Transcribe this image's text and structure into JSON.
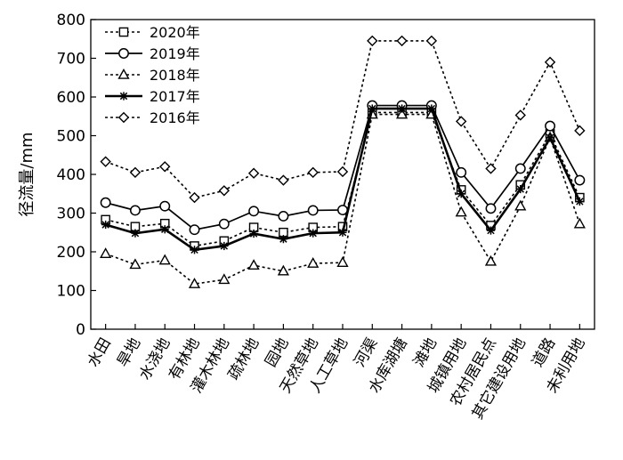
{
  "chart_data": {
    "type": "line",
    "ylabel": "径流量/mm",
    "ylim": [
      0,
      800
    ],
    "yticks": [
      0,
      100,
      200,
      300,
      400,
      500,
      600,
      700,
      800
    ],
    "legend_position": "top-left",
    "categories": [
      "水田",
      "旱地",
      "水浇地",
      "有林地",
      "灌木林地",
      "疏林地",
      "园地",
      "天然草地",
      "人工草地",
      "河渠",
      "水库湖塘",
      "滩地",
      "城镇用地",
      "农村居民点",
      "其它建设用地",
      "道路",
      "未利用地"
    ],
    "series": [
      {
        "name": "2020年",
        "marker": "square",
        "dash": "dotted",
        "values": [
          283,
          265,
          273,
          215,
          228,
          263,
          250,
          263,
          265,
          560,
          560,
          560,
          360,
          268,
          373,
          505,
          340
        ]
      },
      {
        "name": "2019年",
        "marker": "circle",
        "dash": "solid",
        "values": [
          327,
          307,
          318,
          257,
          272,
          305,
          292,
          307,
          308,
          578,
          578,
          578,
          405,
          312,
          415,
          525,
          385
        ]
      },
      {
        "name": "2018年",
        "marker": "triangle",
        "dash": "dotted",
        "values": [
          195,
          167,
          178,
          117,
          128,
          165,
          150,
          170,
          172,
          555,
          555,
          555,
          302,
          175,
          318,
          495,
          272
        ]
      },
      {
        "name": "2017年",
        "marker": "star",
        "dash": "solid-thick",
        "values": [
          270,
          248,
          258,
          205,
          215,
          247,
          233,
          248,
          250,
          570,
          570,
          570,
          350,
          255,
          362,
          495,
          330
        ]
      },
      {
        "name": "2016年",
        "marker": "diamond",
        "dash": "dotted",
        "values": [
          433,
          405,
          420,
          340,
          358,
          403,
          385,
          405,
          407,
          745,
          745,
          745,
          537,
          415,
          553,
          690,
          513
        ]
      }
    ]
  }
}
